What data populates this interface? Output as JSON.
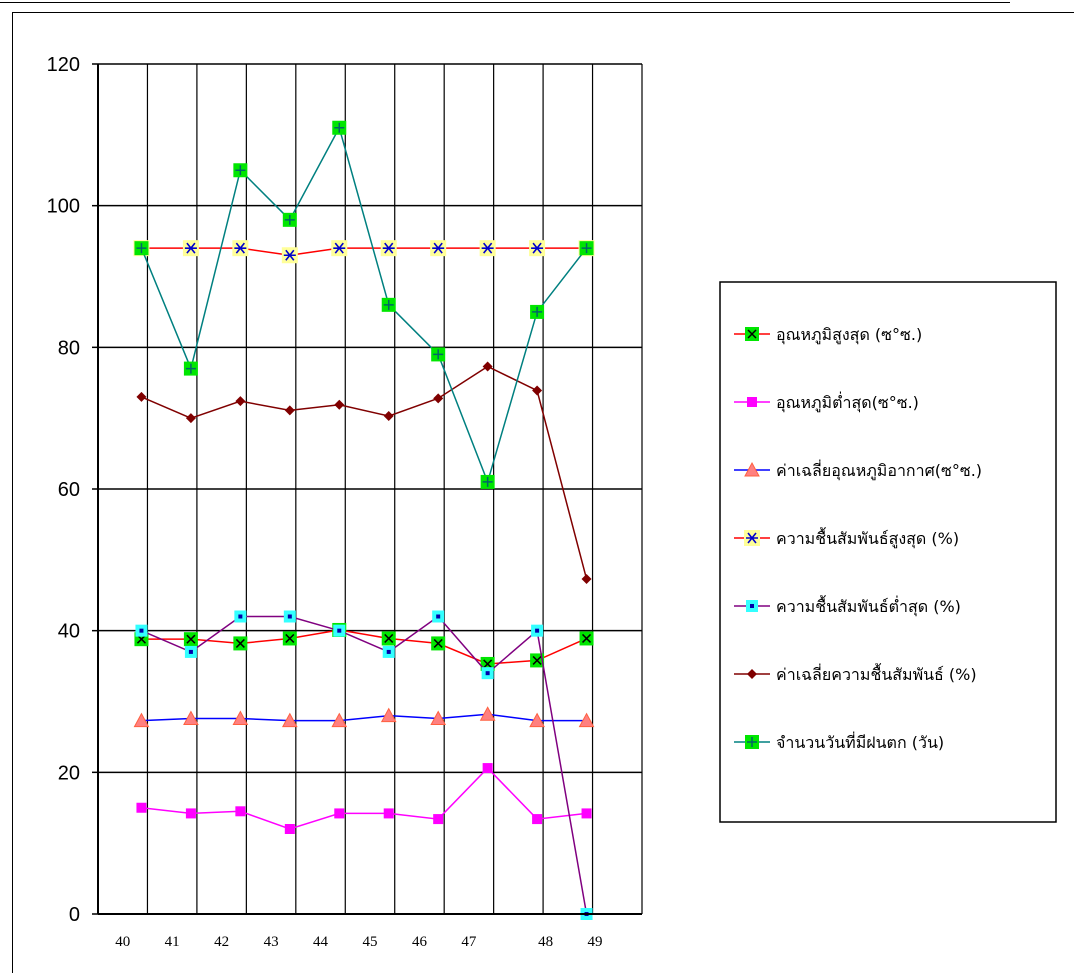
{
  "chart_data": {
    "type": "line",
    "title": "",
    "xlabel": "",
    "ylabel": "",
    "ylim": [
      0,
      120
    ],
    "y_ticks": [
      "0",
      "20",
      "40",
      "60",
      "80",
      "100",
      "120"
    ],
    "x_tick_labels": [
      "40",
      "41",
      "42",
      "43",
      "44",
      "45",
      "46",
      "47",
      "48",
      "49"
    ],
    "grid": true,
    "legend_position": "right",
    "series": [
      {
        "name": "อุณหภูมิสูงสุด (ซ°ซ.)",
        "color": "#ff0000",
        "marker": "square-x",
        "marker_fill": "#00e600",
        "values": [
          38.8,
          38.8,
          38.2,
          38.9,
          40.1,
          38.9,
          38.2,
          35.3,
          35.8,
          38.9
        ]
      },
      {
        "name": "อุณหภูมิต่ำสุด(ซ°ซ.)",
        "color": "#ff00ff",
        "marker": "square",
        "marker_fill": "#ff00ff",
        "values": [
          15.0,
          14.2,
          14.5,
          12.0,
          14.2,
          14.2,
          13.4,
          20.6,
          13.4,
          14.2
        ]
      },
      {
        "name": "ค่าเฉลี่ยอุณหภูมิอากาศ(ซ°ซ.)",
        "color": "#0000ff",
        "marker": "triangle",
        "marker_fill": "#ff8080",
        "values": [
          27.3,
          27.6,
          27.6,
          27.3,
          27.3,
          28.0,
          27.6,
          28.2,
          27.3,
          27.3
        ]
      },
      {
        "name": "ความชื้นสัมพันธ์สูงสุด (%)",
        "color": "#ff0000",
        "marker": "asterisk",
        "marker_fill": "#ffff99",
        "values": [
          94,
          94,
          94,
          93,
          94,
          94,
          94,
          94,
          94,
          94
        ]
      },
      {
        "name": "ความชื้นสัมพันธ์ต่ำสุด (%)",
        "color": "#800080",
        "marker": "square-dot",
        "marker_fill": "#33ffff",
        "values": [
          40,
          37,
          42,
          42,
          40,
          37,
          42,
          34,
          40,
          0
        ]
      },
      {
        "name": "ค่าเฉลี่ยความชื้นสัมพันธ์ (%)",
        "color": "#800000",
        "marker": "diamond",
        "marker_fill": "#800000",
        "values": [
          73,
          70,
          72.4,
          71.1,
          71.9,
          70.3,
          72.8,
          77.3,
          73.9,
          47.3
        ]
      },
      {
        "name": "จำนวนวันที่มีฝนตก (วัน)",
        "color": "#008080",
        "marker": "square-plus",
        "marker_fill": "#00e600",
        "values": [
          94,
          77,
          105,
          98,
          111,
          86,
          79,
          61,
          85,
          94
        ]
      }
    ]
  }
}
